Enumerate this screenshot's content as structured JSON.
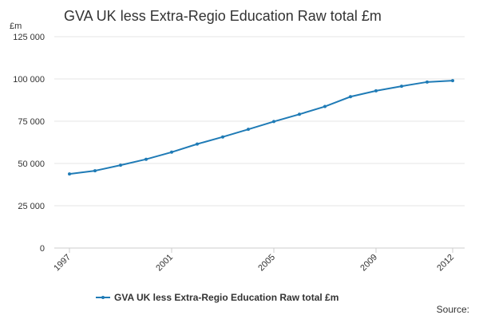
{
  "chart_data": {
    "type": "line",
    "title": "GVA UK less Extra-Regio Education Raw total £m",
    "y_label": "£m",
    "source": "Source:",
    "x": [
      1997,
      1998,
      1999,
      2000,
      2001,
      2002,
      2003,
      2004,
      2005,
      2006,
      2007,
      2008,
      2009,
      2010,
      2011,
      2012
    ],
    "series": [
      {
        "name": "GVA UK less Extra-Regio Education Raw total £m",
        "color": "#1f7bb6",
        "values": [
          43800,
          45700,
          49000,
          52500,
          56700,
          61500,
          65700,
          70200,
          74800,
          79100,
          83700,
          89500,
          93000,
          95700,
          98200,
          99000
        ]
      }
    ],
    "xlim": [
      1997,
      2012
    ],
    "xticks": [
      1997,
      2001,
      2005,
      2009,
      2012
    ],
    "ylim": [
      0,
      125000
    ],
    "yticks": [
      {
        "value": 0,
        "label": "0"
      },
      {
        "value": 25000,
        "label": "25 000"
      },
      {
        "value": 50000,
        "label": "50 000"
      },
      {
        "value": 75000,
        "label": "75 000"
      },
      {
        "value": 100000,
        "label": "100 000"
      },
      {
        "value": 125000,
        "label": "125 000"
      }
    ],
    "grid": true
  }
}
